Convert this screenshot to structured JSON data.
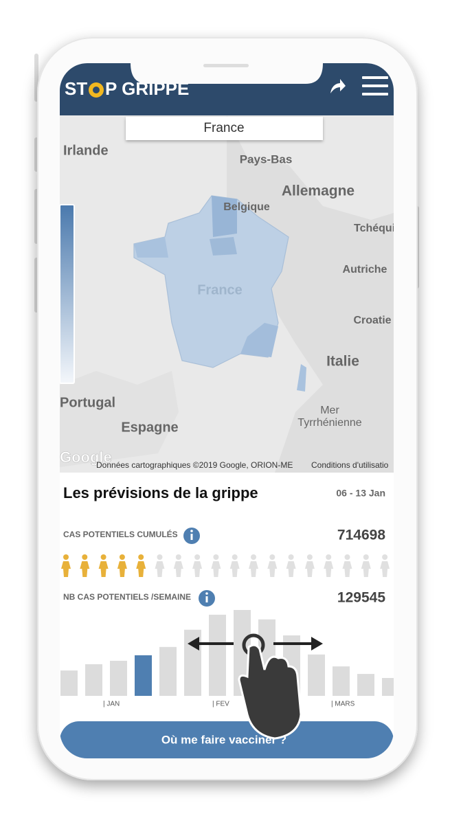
{
  "app": {
    "logo_left": "ST",
    "logo_right": "P GRIPPE"
  },
  "region_selector": "France",
  "map": {
    "labels": [
      "Irlande",
      "Pays-Bas",
      "Belgique",
      "Allemagne",
      "Tchéqui",
      "Autriche",
      "France",
      "Croatie",
      "Italie",
      "Portugal",
      "Espagne",
      "Mer",
      "Tyrrhénienne"
    ],
    "google": "Google",
    "attribution": "Données cartographiques ©2019 Google, ORION-ME",
    "terms": "Conditions d'utilisatio"
  },
  "forecast": {
    "title": "Les prévisions de la grippe",
    "period": "06 - 13 Jan",
    "cumulative_label": "CAS POTENTIELS CUMULÉS",
    "cumulative_value": "714698",
    "people": {
      "total": 18,
      "highlighted": 5
    },
    "weekly_label": "NB CAS POTENTIELS /SEMAINE",
    "weekly_value": "129545"
  },
  "chart_data": {
    "type": "bar",
    "categories": [
      null,
      null,
      "| JAN",
      null,
      null,
      null,
      "| FEV",
      null,
      null,
      null,
      null,
      "| MARS",
      null,
      null
    ],
    "values": [
      81000,
      101000,
      112000,
      129545,
      156000,
      211000,
      259000,
      274000,
      244000,
      193000,
      132000,
      94000,
      70000,
      57000
    ],
    "color": "#dcdcdc",
    "selected_color": "#4f7fb1",
    "selected_index": 3
  },
  "button": "Où me faire vacciner ?"
}
